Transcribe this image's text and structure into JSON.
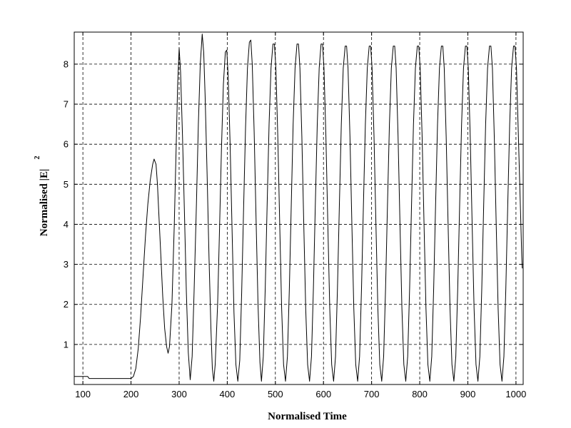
{
  "chart_data": {
    "type": "line",
    "xlabel": "Normalised  Time",
    "ylabel": "Normalised  |E|",
    "ylabel_superscript": "2",
    "xlim": [
      82,
      1015
    ],
    "ylim": [
      0,
      8.8
    ],
    "xticks": [
      100,
      200,
      300,
      400,
      500,
      600,
      700,
      800,
      900,
      1000
    ],
    "yticks": [
      1,
      2,
      3,
      4,
      5,
      6,
      7,
      8
    ],
    "grid": true,
    "line_color": "#000000",
    "series": [
      {
        "values_note": "",
        "points": [
          [
            82,
            0.2
          ],
          [
            110,
            0.2
          ],
          [
            113,
            0.15
          ],
          [
            200,
            0.15
          ],
          [
            205,
            0.2
          ],
          [
            210,
            0.4
          ],
          [
            215,
            0.9
          ],
          [
            220,
            1.7
          ],
          [
            225,
            2.7
          ],
          [
            230,
            3.7
          ],
          [
            235,
            4.5
          ],
          [
            240,
            5.1
          ],
          [
            245,
            5.5
          ],
          [
            248,
            5.63
          ],
          [
            252,
            5.5
          ],
          [
            255,
            5.0
          ],
          [
            258,
            4.2
          ],
          [
            262,
            3.2
          ],
          [
            266,
            2.2
          ],
          [
            270,
            1.4
          ],
          [
            274,
            0.95
          ],
          [
            277,
            0.78
          ],
          [
            280,
            0.95
          ],
          [
            285,
            2.0
          ],
          [
            290,
            4.0
          ],
          [
            294,
            6.0
          ],
          [
            297,
            7.5
          ],
          [
            300,
            8.4
          ],
          [
            303,
            7.8
          ],
          [
            307,
            6.2
          ],
          [
            311,
            4.3
          ],
          [
            315,
            2.3
          ],
          [
            319,
            0.8
          ],
          [
            323,
            0.12
          ],
          [
            327,
            0.7
          ],
          [
            331,
            2.3
          ],
          [
            336,
            4.5
          ],
          [
            340,
            6.5
          ],
          [
            344,
            8.0
          ],
          [
            348,
            8.75
          ],
          [
            351,
            8.3
          ],
          [
            354,
            7.2
          ],
          [
            358,
            5.3
          ],
          [
            362,
            3.2
          ],
          [
            366,
            1.4
          ],
          [
            369,
            0.4
          ],
          [
            372,
            0.08
          ],
          [
            375,
            0.5
          ],
          [
            380,
            2.0
          ],
          [
            384,
            3.9
          ],
          [
            388,
            5.9
          ],
          [
            392,
            7.5
          ],
          [
            396,
            8.3
          ],
          [
            399,
            8.35
          ],
          [
            402,
            7.7
          ],
          [
            406,
            6.0
          ],
          [
            410,
            3.9
          ],
          [
            414,
            1.8
          ],
          [
            418,
            0.5
          ],
          [
            422,
            0.08
          ],
          [
            426,
            0.6
          ],
          [
            430,
            2.3
          ],
          [
            434,
            4.4
          ],
          [
            438,
            6.4
          ],
          [
            442,
            7.9
          ],
          [
            446,
            8.55
          ],
          [
            449,
            8.6
          ],
          [
            452,
            8.0
          ],
          [
            456,
            6.3
          ],
          [
            460,
            4.1
          ],
          [
            464,
            2.0
          ],
          [
            468,
            0.55
          ],
          [
            471,
            0.08
          ],
          [
            475,
            0.7
          ],
          [
            479,
            2.4
          ],
          [
            483,
            4.5
          ],
          [
            487,
            6.5
          ],
          [
            491,
            7.9
          ],
          [
            495,
            8.5
          ],
          [
            498,
            8.5
          ],
          [
            501,
            7.9
          ],
          [
            505,
            6.2
          ],
          [
            509,
            4.0
          ],
          [
            513,
            1.9
          ],
          [
            517,
            0.5
          ],
          [
            521,
            0.08
          ],
          [
            525,
            0.7
          ],
          [
            529,
            2.4
          ],
          [
            533,
            4.5
          ],
          [
            537,
            6.5
          ],
          [
            541,
            7.9
          ],
          [
            545,
            8.5
          ],
          [
            548,
            8.5
          ],
          [
            551,
            7.9
          ],
          [
            555,
            6.2
          ],
          [
            559,
            4.0
          ],
          [
            563,
            1.9
          ],
          [
            567,
            0.5
          ],
          [
            571,
            0.08
          ],
          [
            575,
            0.7
          ],
          [
            579,
            2.4
          ],
          [
            583,
            4.5
          ],
          [
            587,
            6.5
          ],
          [
            591,
            7.9
          ],
          [
            595,
            8.5
          ],
          [
            598,
            8.5
          ],
          [
            601,
            7.9
          ],
          [
            605,
            6.2
          ],
          [
            609,
            4.0
          ],
          [
            613,
            1.9
          ],
          [
            617,
            0.5
          ],
          [
            621,
            0.08
          ],
          [
            625,
            0.7
          ],
          [
            629,
            2.4
          ],
          [
            633,
            4.5
          ],
          [
            637,
            6.5
          ],
          [
            641,
            7.9
          ],
          [
            645,
            8.45
          ],
          [
            648,
            8.45
          ],
          [
            651,
            7.9
          ],
          [
            655,
            6.2
          ],
          [
            659,
            4.0
          ],
          [
            663,
            1.9
          ],
          [
            667,
            0.5
          ],
          [
            671,
            0.08
          ],
          [
            675,
            0.7
          ],
          [
            679,
            2.4
          ],
          [
            683,
            4.5
          ],
          [
            687,
            6.5
          ],
          [
            691,
            7.9
          ],
          [
            695,
            8.45
          ],
          [
            698,
            8.45
          ],
          [
            701,
            7.9
          ],
          [
            705,
            6.2
          ],
          [
            709,
            4.0
          ],
          [
            713,
            1.9
          ],
          [
            717,
            0.5
          ],
          [
            721,
            0.08
          ],
          [
            725,
            0.7
          ],
          [
            729,
            2.4
          ],
          [
            733,
            4.5
          ],
          [
            737,
            6.5
          ],
          [
            741,
            7.9
          ],
          [
            745,
            8.45
          ],
          [
            748,
            8.45
          ],
          [
            751,
            7.9
          ],
          [
            755,
            6.2
          ],
          [
            759,
            4.0
          ],
          [
            763,
            1.9
          ],
          [
            767,
            0.5
          ],
          [
            771,
            0.08
          ],
          [
            775,
            0.7
          ],
          [
            779,
            2.4
          ],
          [
            783,
            4.5
          ],
          [
            787,
            6.5
          ],
          [
            791,
            7.9
          ],
          [
            795,
            8.45
          ],
          [
            798,
            8.45
          ],
          [
            801,
            7.9
          ],
          [
            805,
            6.2
          ],
          [
            809,
            4.0
          ],
          [
            813,
            1.9
          ],
          [
            817,
            0.5
          ],
          [
            821,
            0.08
          ],
          [
            825,
            0.7
          ],
          [
            829,
            2.4
          ],
          [
            833,
            4.5
          ],
          [
            837,
            6.5
          ],
          [
            841,
            7.9
          ],
          [
            845,
            8.45
          ],
          [
            848,
            8.45
          ],
          [
            851,
            7.9
          ],
          [
            855,
            6.2
          ],
          [
            859,
            4.0
          ],
          [
            863,
            1.9
          ],
          [
            867,
            0.5
          ],
          [
            871,
            0.08
          ],
          [
            875,
            0.7
          ],
          [
            879,
            2.4
          ],
          [
            883,
            4.5
          ],
          [
            887,
            6.5
          ],
          [
            891,
            7.9
          ],
          [
            895,
            8.45
          ],
          [
            898,
            8.45
          ],
          [
            901,
            7.9
          ],
          [
            905,
            6.2
          ],
          [
            909,
            4.0
          ],
          [
            913,
            1.9
          ],
          [
            917,
            0.5
          ],
          [
            921,
            0.08
          ],
          [
            925,
            0.7
          ],
          [
            929,
            2.4
          ],
          [
            933,
            4.5
          ],
          [
            937,
            6.5
          ],
          [
            941,
            7.9
          ],
          [
            945,
            8.45
          ],
          [
            948,
            8.45
          ],
          [
            951,
            7.9
          ],
          [
            955,
            6.2
          ],
          [
            959,
            4.0
          ],
          [
            963,
            1.9
          ],
          [
            967,
            0.5
          ],
          [
            971,
            0.08
          ],
          [
            975,
            0.7
          ],
          [
            979,
            2.4
          ],
          [
            983,
            4.5
          ],
          [
            987,
            6.5
          ],
          [
            991,
            7.9
          ],
          [
            995,
            8.45
          ],
          [
            998,
            8.45
          ],
          [
            1001,
            7.9
          ],
          [
            1005,
            6.2
          ],
          [
            1009,
            4.5
          ],
          [
            1012,
            3.2
          ],
          [
            1013,
            2.9
          ]
        ]
      }
    ]
  }
}
